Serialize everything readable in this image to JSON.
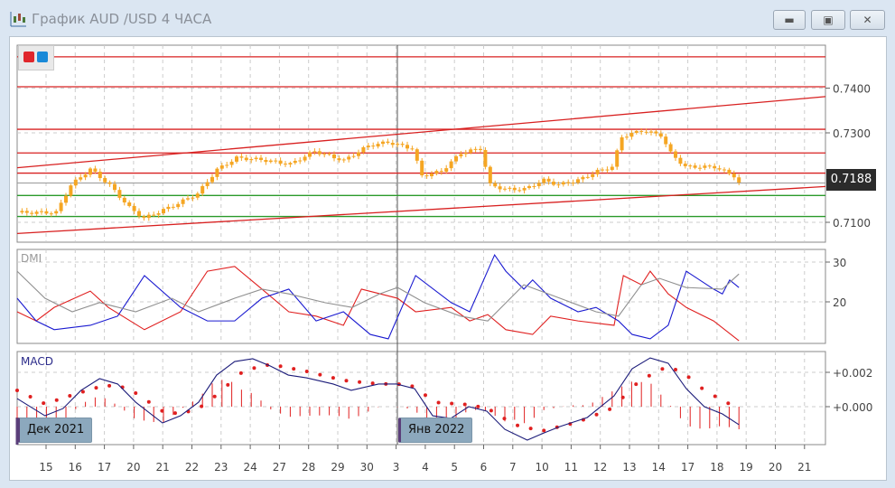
{
  "window": {
    "title": "График AUD /USD  4 ЧАСА",
    "buttons": {
      "minimize": "▬",
      "maximize": "▣",
      "close": "✕"
    }
  },
  "legend_colors": {
    "red": "#e0262b",
    "blue": "#1a8ad8"
  },
  "main_panel": {
    "price_axis_labels": [
      "0.7400",
      "0.7300",
      "0.7100"
    ],
    "current_price": "0.7188",
    "candle_color": "#f5a623"
  },
  "dmi_panel": {
    "title": "DMI",
    "axis_labels": [
      "30",
      "20"
    ]
  },
  "macd_panel": {
    "title": "MACD",
    "axis_labels": [
      "+0.002",
      "+0.000"
    ]
  },
  "month_labels": [
    "Дек 2021",
    "Янв 2022"
  ],
  "x_axis_labels": [
    "15",
    "16",
    "17",
    "20",
    "21",
    "22",
    "23",
    "24",
    "27",
    "28",
    "29",
    "30",
    "3",
    "4",
    "5",
    "6",
    "7",
    "10",
    "11",
    "12",
    "13",
    "14",
    "17",
    "18",
    "19",
    "20",
    "21"
  ],
  "chart_data": [
    {
      "type": "candlestick",
      "title": "AUD/USD 4H",
      "price_path_bar_close": [
        [
          0,
          0.7122
        ],
        [
          8,
          0.7122
        ],
        [
          11,
          0.7183
        ],
        [
          15,
          0.7219
        ],
        [
          19,
          0.7183
        ],
        [
          23,
          0.7133
        ],
        [
          26,
          0.7109
        ],
        [
          32,
          0.7137
        ],
        [
          37,
          0.7164
        ],
        [
          41,
          0.7218
        ],
        [
          45,
          0.7244
        ],
        [
          50,
          0.724
        ],
        [
          56,
          0.723
        ],
        [
          61,
          0.7259
        ],
        [
          67,
          0.7238
        ],
        [
          72,
          0.7271
        ],
        [
          76,
          0.7279
        ],
        [
          81,
          0.7265
        ],
        [
          83,
          0.7204
        ],
        [
          87,
          0.7214
        ],
        [
          91,
          0.7255
        ],
        [
          95,
          0.7265
        ],
        [
          97,
          0.7184
        ],
        [
          100,
          0.7174
        ],
        [
          104,
          0.7174
        ],
        [
          108,
          0.7194
        ],
        [
          111,
          0.7184
        ],
        [
          115,
          0.7194
        ],
        [
          119,
          0.7214
        ],
        [
          122,
          0.7224
        ],
        [
          124,
          0.7291
        ],
        [
          128,
          0.7305
        ],
        [
          132,
          0.7295
        ],
        [
          134,
          0.7255
        ],
        [
          137,
          0.7224
        ],
        [
          143,
          0.7224
        ],
        [
          147,
          0.7204
        ],
        [
          148,
          0.7188
        ]
      ],
      "ylim": [
        0.707,
        0.748
      ],
      "horizontal_levels_red": [
        0.747,
        0.7403,
        0.7308,
        0.7255,
        0.721
      ],
      "horizontal_levels_green": [
        0.716,
        0.7113
      ],
      "channel_upper": [
        0.7222,
        0.7381
      ],
      "channel_lower": [
        0.7075,
        0.718
      ]
    },
    {
      "type": "line",
      "title": "DMI",
      "ylim": [
        7,
        33
      ],
      "series": [
        {
          "color": "#e02020",
          "points": [
            [
              0,
              17.5
            ],
            [
              3.9,
              15.2
            ],
            [
              7.6,
              18.6
            ],
            [
              15,
              22.7
            ],
            [
              18.7,
              18.6
            ],
            [
              26.1,
              13.0
            ],
            [
              33.5,
              17.5
            ],
            [
              39,
              27.7
            ],
            [
              44.6,
              28.9
            ],
            [
              50.2,
              23.2
            ],
            [
              55.7,
              17.5
            ],
            [
              61.3,
              16.4
            ],
            [
              66.9,
              14.1
            ],
            [
              70.6,
              23.2
            ],
            [
              78,
              20.9
            ],
            [
              81.7,
              17.5
            ],
            [
              89,
              18.6
            ],
            [
              92.8,
              15.2
            ],
            [
              96.5,
              16.8
            ],
            [
              100.2,
              13.0
            ],
            [
              105.7,
              11.8
            ],
            [
              109.4,
              16.4
            ],
            [
              115,
              15.2
            ],
            [
              122.4,
              14.1
            ],
            [
              124.3,
              26.6
            ],
            [
              128,
              24.3
            ],
            [
              129.8,
              27.7
            ],
            [
              133.5,
              22.0
            ],
            [
              137.2,
              18.6
            ],
            [
              142.8,
              15.2
            ],
            [
              148,
              10.2
            ]
          ]
        },
        {
          "color": "#1a1ad0",
          "points": [
            [
              0,
              20.9
            ],
            [
              3.9,
              15.2
            ],
            [
              7.6,
              13.0
            ],
            [
              15,
              14.1
            ],
            [
              20.6,
              16.4
            ],
            [
              26.1,
              26.6
            ],
            [
              33.5,
              18.6
            ],
            [
              39,
              15.2
            ],
            [
              44.6,
              15.2
            ],
            [
              50.2,
              20.9
            ],
            [
              55.7,
              23.2
            ],
            [
              61.3,
              15.2
            ],
            [
              66.9,
              17.5
            ],
            [
              72.4,
              11.8
            ],
            [
              76.1,
              10.7
            ],
            [
              81.7,
              26.6
            ],
            [
              89,
              19.8
            ],
            [
              92.8,
              17.5
            ],
            [
              97.9,
              31.8
            ],
            [
              100.2,
              27.7
            ],
            [
              103.9,
              23.2
            ],
            [
              105.7,
              25.5
            ],
            [
              109.4,
              20.9
            ],
            [
              115,
              17.5
            ],
            [
              118.7,
              18.6
            ],
            [
              123.3,
              15.2
            ],
            [
              126.1,
              11.8
            ],
            [
              129.8,
              10.7
            ],
            [
              133.5,
              14.1
            ],
            [
              137.2,
              27.7
            ],
            [
              142.8,
              23.2
            ],
            [
              144.6,
              22.0
            ],
            [
              146.1,
              25.5
            ],
            [
              148,
              23.6
            ]
          ]
        },
        {
          "color": "#909090",
          "points": [
            [
              0,
              27.7
            ],
            [
              5.7,
              20.9
            ],
            [
              11.3,
              17.5
            ],
            [
              16.9,
              19.8
            ],
            [
              24.3,
              17.5
            ],
            [
              31.7,
              20.9
            ],
            [
              37.2,
              17.5
            ],
            [
              44.6,
              20.9
            ],
            [
              50.2,
              23.2
            ],
            [
              55.7,
              22.0
            ],
            [
              63.1,
              19.8
            ],
            [
              68.7,
              18.6
            ],
            [
              74.3,
              22.0
            ],
            [
              78,
              23.6
            ],
            [
              83.5,
              19.8
            ],
            [
              90.9,
              16.4
            ],
            [
              96.5,
              15.2
            ],
            [
              103.9,
              24.3
            ],
            [
              111.3,
              20.9
            ],
            [
              118.7,
              17.5
            ],
            [
              123.3,
              16.4
            ],
            [
              128,
              24.3
            ],
            [
              131.7,
              25.9
            ],
            [
              137.2,
              23.6
            ],
            [
              144.6,
              23.2
            ],
            [
              148,
              27.0
            ]
          ]
        }
      ]
    },
    {
      "type": "line",
      "title": "MACD",
      "ylim": [
        -0.0022,
        0.0032
      ],
      "series": [
        {
          "color": "#1c1c7a",
          "points": [
            [
              0,
              0.00047
            ],
            [
              5.7,
              -0.00053
            ],
            [
              9.4,
              -0.00011
            ],
            [
              13.1,
              0.00095
            ],
            [
              16.9,
              0.00163
            ],
            [
              20.6,
              0.00132
            ],
            [
              24.3,
              0.00026
            ],
            [
              29.8,
              -0.00095
            ],
            [
              33.5,
              -0.00053
            ],
            [
              37.2,
              0.00026
            ],
            [
              40.9,
              0.00184
            ],
            [
              44.6,
              0.00263
            ],
            [
              48.3,
              0.00279
            ],
            [
              51.9,
              0.00237
            ],
            [
              55.6,
              0.00184
            ],
            [
              59.3,
              0.00168
            ],
            [
              64.8,
              0.00132
            ],
            [
              68.5,
              0.00095
            ],
            [
              74.1,
              0.00132
            ],
            [
              77.8,
              0.00132
            ],
            [
              81.5,
              0.00105
            ],
            [
              85.2,
              -0.00053
            ],
            [
              88.9,
              -0.00068
            ],
            [
              92.6,
              0
            ],
            [
              96.3,
              -0.00026
            ],
            [
              100,
              -0.00132
            ],
            [
              104.6,
              -0.00195
            ],
            [
              107.6,
              -0.00158
            ],
            [
              111.3,
              -0.00116
            ],
            [
              116.9,
              -0.00063
            ],
            [
              122.4,
              0.00063
            ],
            [
              126.1,
              0.00221
            ],
            [
              129.8,
              0.00284
            ],
            [
              133.5,
              0.00253
            ],
            [
              137.2,
              0.00105
            ],
            [
              140.9,
              0
            ],
            [
              144.6,
              -0.00042
            ],
            [
              148,
              -0.00105
            ]
          ]
        },
        {
          "color": "#e02020",
          "style": "dots",
          "points": [
            [
              0,
              0.00095
            ],
            [
              5.7,
              0.00016
            ],
            [
              11.3,
              0.00068
            ],
            [
              16.9,
              0.00116
            ],
            [
              20.6,
              0.00126
            ],
            [
              24.3,
              0.00079
            ],
            [
              29.8,
              -0.00026
            ],
            [
              33.5,
              -0.00042
            ],
            [
              37.2,
              -0.00011
            ],
            [
              40.9,
              0.00068
            ],
            [
              46.5,
              0.00211
            ],
            [
              52,
              0.00247
            ],
            [
              59.4,
              0.00205
            ],
            [
              66.9,
              0.00153
            ],
            [
              74.3,
              0.00132
            ],
            [
              78,
              0.00132
            ],
            [
              81.7,
              0.00116
            ],
            [
              85.4,
              0.00026
            ],
            [
              92.8,
              0.00011
            ],
            [
              96.5,
              -0.00011
            ],
            [
              102,
              -0.00105
            ],
            [
              107.6,
              -0.00142
            ],
            [
              115,
              -0.00089
            ],
            [
              122.4,
              -5e-05
            ],
            [
              126.1,
              0.00116
            ],
            [
              129.8,
              0.00184
            ],
            [
              133.5,
              0.00237
            ],
            [
              137.2,
              0.00184
            ],
            [
              140.9,
              0.00095
            ],
            [
              144.6,
              0.00037
            ],
            [
              148,
              -0.00011
            ]
          ]
        }
      ]
    }
  ]
}
